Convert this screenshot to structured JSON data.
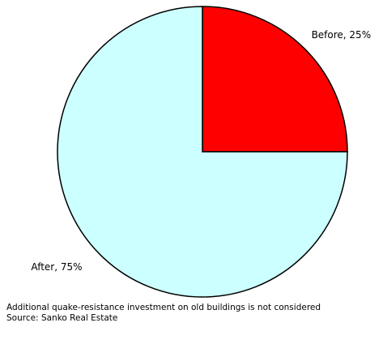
{
  "chart_data": {
    "type": "pie",
    "values": [
      25,
      75
    ],
    "value_labels": [
      "Before, 25%",
      "After, 75%"
    ],
    "colors": [
      "#ff0000",
      "#ccffff"
    ],
    "notes": [
      "Additional quake-resistance investment on old buildings is not considered",
      "Source: Sanko Real Estate"
    ]
  }
}
